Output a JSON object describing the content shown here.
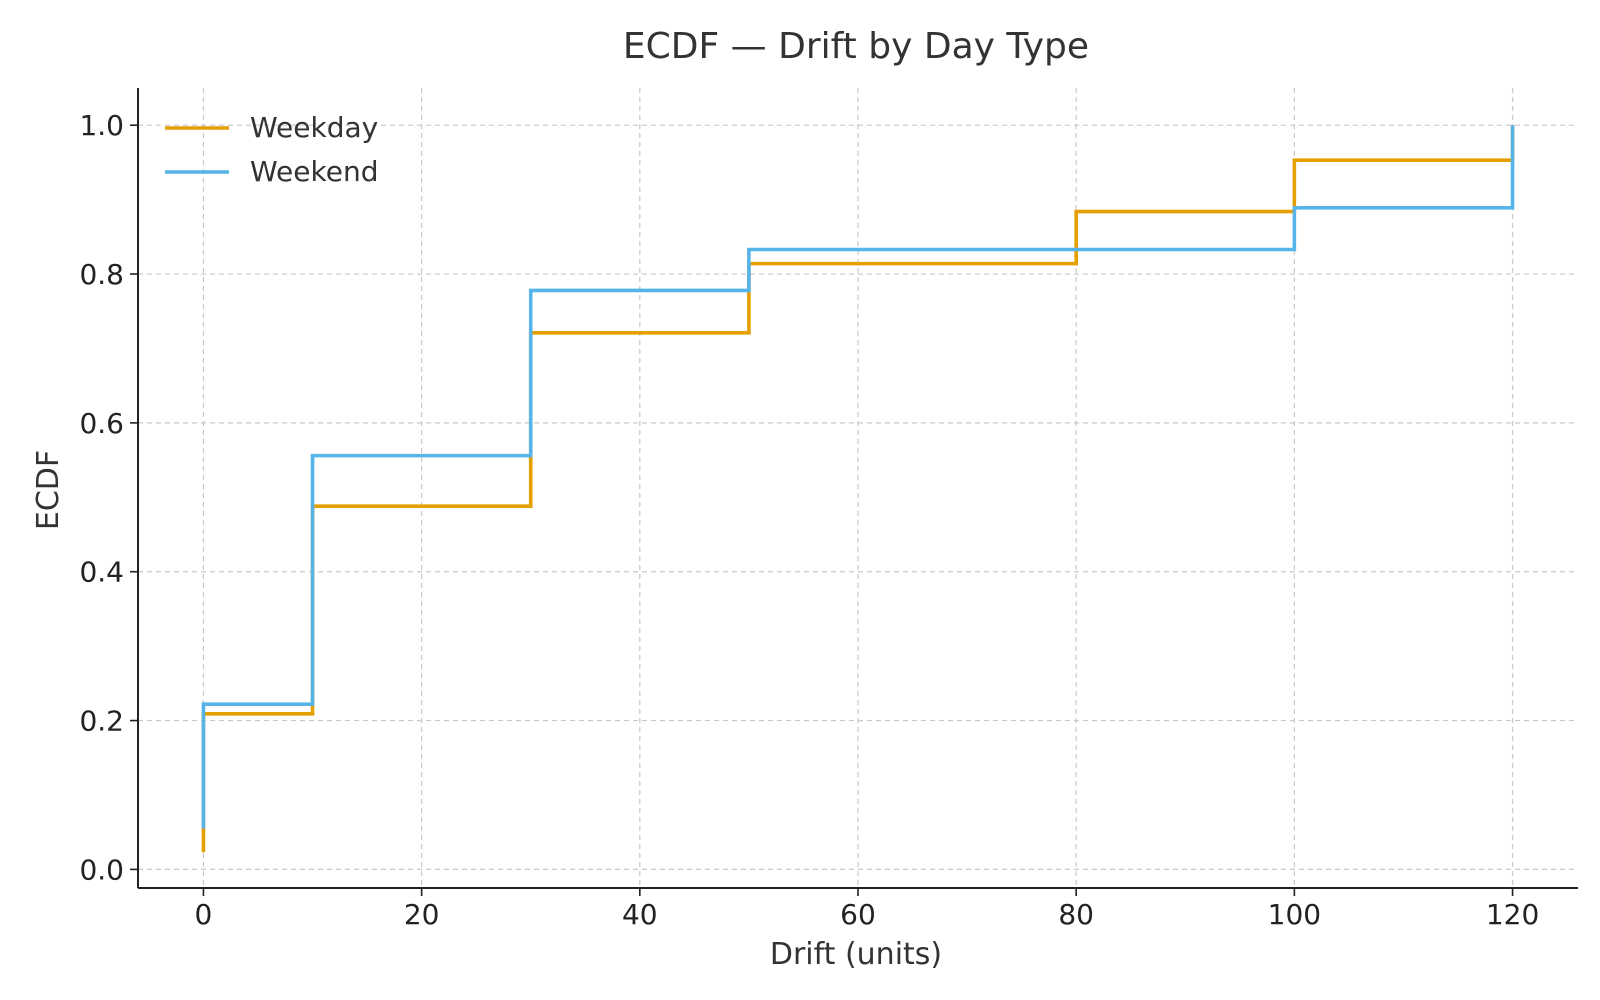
{
  "chart_data": {
    "type": "line",
    "step": true,
    "title": "ECDF — Drift by Day Type",
    "xlabel": "Drift (units)",
    "ylabel": "ECDF",
    "xlim": [
      -6,
      126
    ],
    "ylim": [
      -0.025,
      1.05
    ],
    "xticks": [
      0,
      20,
      40,
      60,
      80,
      100,
      120
    ],
    "xtick_labels": [
      "0",
      "20",
      "40",
      "60",
      "80",
      "100",
      "120"
    ],
    "yticks": [
      0.0,
      0.2,
      0.4,
      0.6,
      0.8,
      1.0
    ],
    "ytick_labels": [
      "0.0",
      "0.2",
      "0.4",
      "0.6",
      "0.8",
      "1.0"
    ],
    "grid": true,
    "legend_position": "top-left",
    "series": [
      {
        "name": "Weekday",
        "color": "#E69F00",
        "x": [
          0,
          10,
          30,
          50,
          80,
          100,
          120
        ],
        "y": [
          0.209,
          0.488,
          0.721,
          0.814,
          0.884,
          0.953,
          1.0
        ]
      },
      {
        "name": "Weekend",
        "color": "#56B4E9",
        "x": [
          0,
          10,
          30,
          50,
          100,
          120
        ],
        "y": [
          0.222,
          0.556,
          0.778,
          0.833,
          0.889,
          1.0
        ]
      }
    ]
  }
}
